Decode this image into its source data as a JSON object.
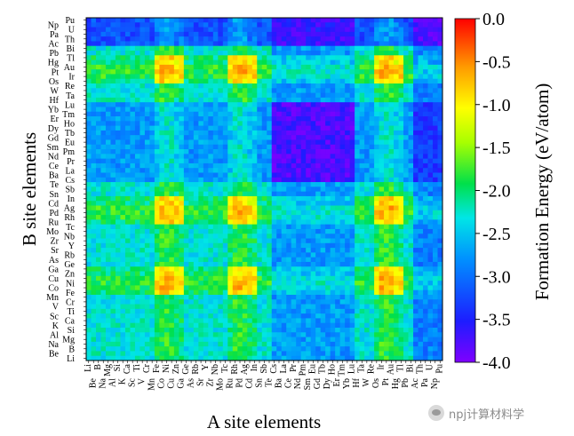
{
  "chart_data": {
    "type": "heatmap",
    "xlabel": "A site elements",
    "ylabel": "B site elements",
    "x_tick_labels": [
      "Li",
      "Be",
      "B",
      "Na",
      "Mg",
      "Al",
      "Si",
      "K",
      "Ca",
      "Sc",
      "Ti",
      "V",
      "Cr",
      "Mn",
      "Fe",
      "Co",
      "Ni",
      "Cu",
      "Zn",
      "Ga",
      "Ge",
      "As",
      "Rb",
      "Sr",
      "Y",
      "Zr",
      "Nb",
      "Mo",
      "Tc",
      "Ru",
      "Rh",
      "Pd",
      "Ag",
      "Cd",
      "In",
      "Sn",
      "Sb",
      "Te",
      "Cs",
      "Ba",
      "La",
      "Ce",
      "Pr",
      "Nd",
      "Pm",
      "Sm",
      "Eu",
      "Gd",
      "Tb",
      "Dy",
      "Ho",
      "Er",
      "Tm",
      "Yb",
      "Lu",
      "Hf",
      "Ta",
      "W",
      "Re",
      "Os",
      "Ir",
      "Pt",
      "Au",
      "Hg",
      "Tl",
      "Pb",
      "Bi",
      "Ac",
      "Th",
      "Pa",
      "U",
      "Np",
      "Pu"
    ],
    "y_tick_labels": [
      "Pu",
      "Np",
      "U",
      "Pa",
      "Th",
      "Ac",
      "Bi",
      "Pb",
      "Tl",
      "Hg",
      "Au",
      "Pt",
      "Ir",
      "Os",
      "Re",
      "W",
      "Ta",
      "Hf",
      "Lu",
      "Yb",
      "Tm",
      "Er",
      "Ho",
      "Dy",
      "Tb",
      "Gd",
      "Eu",
      "Sm",
      "Pm",
      "Nd",
      "Pr",
      "Ce",
      "La",
      "Ba",
      "Cs",
      "Te",
      "Sb",
      "Sn",
      "In",
      "Cd",
      "Ag",
      "Pd",
      "Rh",
      "Ru",
      "Tc",
      "Mo",
      "Nb",
      "Zr",
      "Y",
      "Sr",
      "Rb",
      "As",
      "Ge",
      "Ga",
      "Zn",
      "Cu",
      "Ni",
      "Co",
      "Fe",
      "Mn",
      "Cr",
      "V",
      "Ti",
      "Sc",
      "Ca",
      "K",
      "Si",
      "Al",
      "Mg",
      "Na",
      "B",
      "Be",
      "Li"
    ],
    "colorbar": {
      "label": "Formation Energy (eV/atom)",
      "range": [
        -4.0,
        0.0
      ],
      "tick_labels": [
        "0.0",
        "-0.5",
        "-1.0",
        "-1.5",
        "-2.0",
        "-2.5",
        "-3.0",
        "-3.5",
        "-4.0"
      ],
      "colormap": "jet"
    },
    "value_range": [
      -4.0,
      0.0
    ],
    "value_units": "eV/atom"
  },
  "watermark": {
    "text": "npj计算材料学"
  }
}
